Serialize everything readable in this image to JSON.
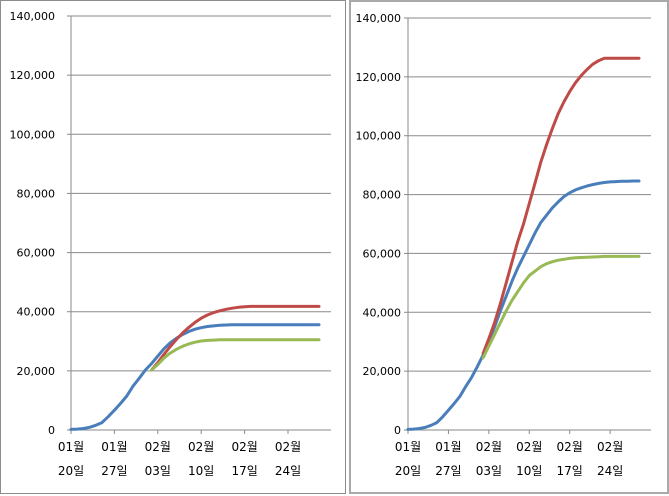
{
  "chart_data": [
    {
      "type": "line",
      "categories": [
        "01월 20일",
        "01월 27일",
        "02월 03일",
        "02월 10일",
        "02월 17일",
        "02월 24일"
      ],
      "ylim": [
        0,
        140000
      ],
      "yticks": [
        "0",
        "20,000",
        "40,000",
        "60,000",
        "80,000",
        "100,000",
        "120,000",
        "140,000"
      ],
      "grid": true,
      "series": [
        {
          "color": "#4a7ebb",
          "x": [
            0,
            1,
            2,
            3,
            4,
            5,
            6,
            7,
            8,
            9,
            10,
            11,
            12,
            13,
            14,
            15,
            16,
            17,
            18,
            19,
            20,
            21,
            22,
            23,
            24,
            25,
            26,
            27,
            28,
            29,
            30,
            31,
            32,
            33,
            34,
            35,
            36,
            37,
            38,
            39,
            40
          ],
          "values": [
            200,
            300,
            500,
            900,
            1600,
            2500,
            4500,
            6700,
            9000,
            11500,
            14800,
            17500,
            20300,
            22500,
            25000,
            27500,
            29500,
            31000,
            32300,
            33300,
            34100,
            34600,
            35000,
            35200,
            35400,
            35500,
            35600,
            35600,
            35600,
            35600,
            35600,
            35600,
            35600,
            35600,
            35600,
            35600,
            35600,
            35600,
            35600,
            35600,
            35600
          ]
        },
        {
          "color": "#be4b48",
          "x": [
            13,
            14,
            15,
            16,
            17,
            18,
            19,
            20,
            21,
            22,
            23,
            24,
            25,
            26,
            27,
            28,
            29,
            30,
            31,
            32,
            33,
            34,
            35,
            36,
            37,
            38,
            39,
            40
          ],
          "values": [
            20300,
            22800,
            25600,
            28200,
            30600,
            32800,
            34700,
            36400,
            37800,
            38900,
            39700,
            40300,
            40800,
            41200,
            41500,
            41700,
            41800,
            41800,
            41800,
            41800,
            41800,
            41800,
            41800,
            41800,
            41800,
            41800,
            41800,
            41800
          ]
        },
        {
          "color": "#98b954",
          "x": [
            13,
            14,
            15,
            16,
            17,
            18,
            19,
            20,
            21,
            22,
            23,
            24,
            25,
            26,
            27,
            28,
            29,
            30,
            31,
            32,
            33,
            34,
            35,
            36,
            37,
            38,
            39,
            40
          ],
          "values": [
            20300,
            22200,
            24300,
            26000,
            27300,
            28300,
            29100,
            29700,
            30100,
            30300,
            30400,
            30500,
            30500,
            30500,
            30500,
            30500,
            30500,
            30500,
            30500,
            30500,
            30500,
            30500,
            30500,
            30500,
            30500,
            30500,
            30500,
            30500
          ]
        }
      ]
    },
    {
      "type": "line",
      "categories": [
        "01월 20일",
        "01월 27일",
        "02월 03일",
        "02월 10일",
        "02월 17일",
        "02월 24일"
      ],
      "ylim": [
        0,
        140000
      ],
      "yticks": [
        "0",
        "20,000",
        "40,000",
        "60,000",
        "80,000",
        "100,000",
        "120,000",
        "140,000"
      ],
      "grid": true,
      "series": [
        {
          "color": "#4a7ebb",
          "x": [
            0,
            1,
            2,
            3,
            4,
            5,
            6,
            7,
            8,
            9,
            10,
            11,
            12,
            13,
            14,
            15,
            16,
            17,
            18,
            19,
            20,
            21,
            22,
            23,
            24,
            25,
            26,
            27,
            28,
            29,
            30,
            31,
            32,
            33,
            34,
            35,
            36,
            37,
            38,
            39,
            40
          ],
          "values": [
            200,
            300,
            500,
            900,
            1600,
            2500,
            4500,
            6700,
            9000,
            11500,
            14800,
            17800,
            21500,
            25500,
            30000,
            35000,
            40500,
            45500,
            50500,
            55000,
            59000,
            63000,
            67000,
            70500,
            73000,
            75500,
            77500,
            79300,
            80600,
            81600,
            82300,
            82900,
            83400,
            83800,
            84100,
            84300,
            84400,
            84500,
            84500,
            84600,
            84600
          ]
        },
        {
          "color": "#be4b48",
          "x": [
            13,
            14,
            15,
            16,
            17,
            18,
            19,
            20,
            21,
            22,
            23,
            24,
            25,
            26,
            27,
            28,
            29,
            30,
            31,
            32,
            33,
            34,
            35,
            36,
            37,
            38,
            39,
            40
          ],
          "values": [
            26000,
            31000,
            36500,
            43000,
            50000,
            57000,
            64000,
            70000,
            77000,
            84000,
            91000,
            97000,
            102500,
            107500,
            111500,
            115000,
            118000,
            120500,
            122500,
            124300,
            125500,
            126300,
            126300,
            126300,
            126300,
            126300,
            126300,
            126300
          ]
        },
        {
          "color": "#98b954",
          "x": [
            13,
            14,
            15,
            16,
            17,
            18,
            19,
            20,
            21,
            22,
            23,
            24,
            25,
            26,
            27,
            28,
            29,
            30,
            31,
            32,
            33,
            34,
            35,
            36,
            37,
            38,
            39,
            40
          ],
          "values": [
            24500,
            28500,
            32500,
            36500,
            40500,
            44000,
            47000,
            50000,
            52500,
            54000,
            55500,
            56500,
            57200,
            57700,
            58000,
            58300,
            58500,
            58600,
            58700,
            58800,
            58900,
            59000,
            59000,
            59000,
            59000,
            59000,
            59000,
            59000
          ]
        }
      ]
    }
  ]
}
